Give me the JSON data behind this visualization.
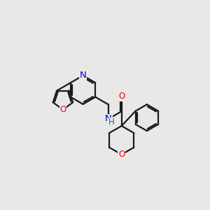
{
  "background_color": "#e8e8e8",
  "bond_color": "#1a1a1a",
  "bond_width": 1.6,
  "atom_colors": {
    "O": "#ff0000",
    "N": "#0000cc",
    "NH": "#008080"
  },
  "font_size": 8.5,
  "figsize": [
    3.0,
    3.0
  ],
  "dpi": 100
}
